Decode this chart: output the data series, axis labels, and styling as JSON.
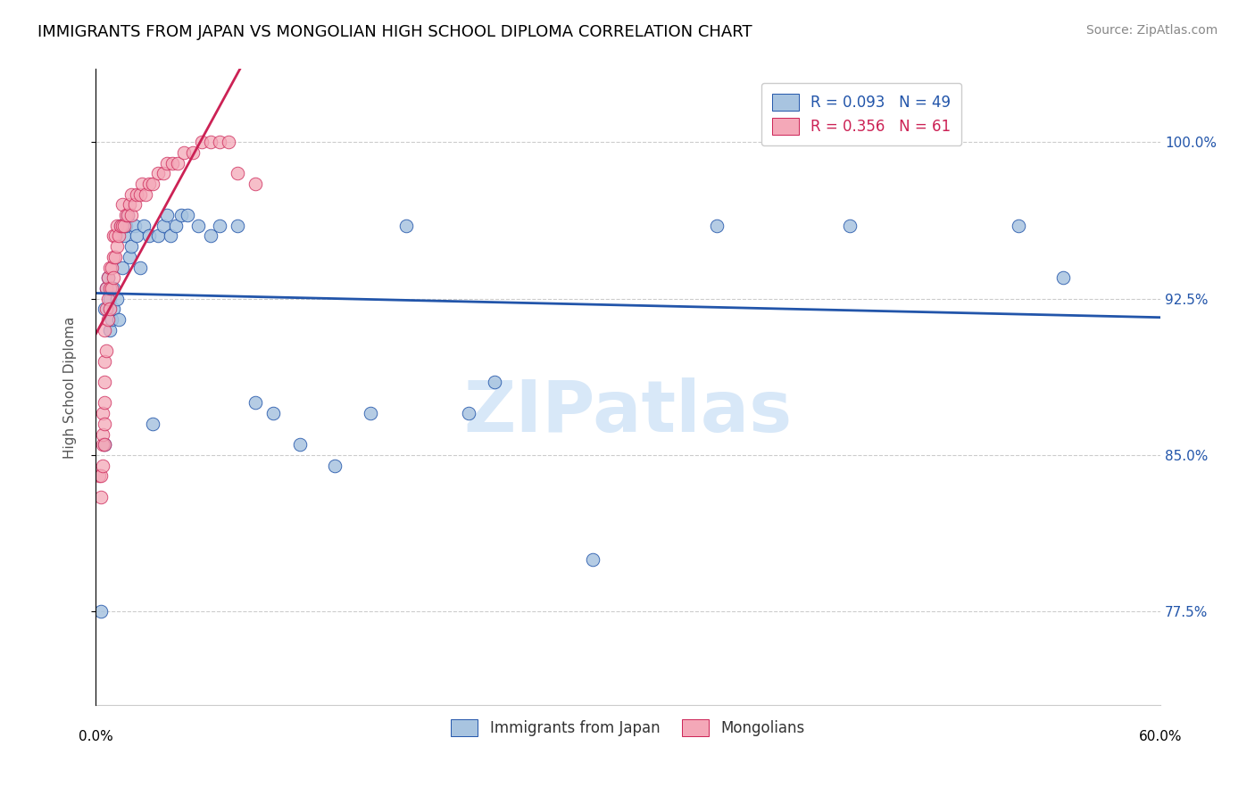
{
  "title": "IMMIGRANTS FROM JAPAN VS MONGOLIAN HIGH SCHOOL DIPLOMA CORRELATION CHART",
  "source": "Source: ZipAtlas.com",
  "ylabel": "High School Diploma",
  "ytick_labels": [
    "100.0%",
    "92.5%",
    "85.0%",
    "77.5%"
  ],
  "ytick_values": [
    1.0,
    0.925,
    0.85,
    0.775
  ],
  "xlim": [
    0.0,
    0.6
  ],
  "ylim": [
    0.73,
    1.035
  ],
  "legend_blue_r": "0.093",
  "legend_blue_n": "49",
  "legend_pink_r": "0.356",
  "legend_pink_n": "61",
  "blue_color": "#A8C4E0",
  "pink_color": "#F4A8B8",
  "trendline_blue_color": "#2255AA",
  "trendline_pink_color": "#CC2255",
  "watermark_text": "ZIPatlas",
  "watermark_color": "#D8E8F8",
  "blue_scatter_x": [
    0.003,
    0.005,
    0.005,
    0.006,
    0.007,
    0.008,
    0.008,
    0.009,
    0.01,
    0.01,
    0.012,
    0.013,
    0.014,
    0.015,
    0.016,
    0.017,
    0.018,
    0.019,
    0.02,
    0.022,
    0.023,
    0.025,
    0.027,
    0.03,
    0.032,
    0.035,
    0.038,
    0.04,
    0.042,
    0.045,
    0.048,
    0.052,
    0.058,
    0.065,
    0.07,
    0.08,
    0.09,
    0.1,
    0.115,
    0.135,
    0.155,
    0.175,
    0.21,
    0.225,
    0.28,
    0.35,
    0.425,
    0.52,
    0.545
  ],
  "blue_scatter_y": [
    0.775,
    0.855,
    0.92,
    0.93,
    0.935,
    0.91,
    0.925,
    0.915,
    0.92,
    0.93,
    0.925,
    0.915,
    0.96,
    0.94,
    0.955,
    0.96,
    0.965,
    0.945,
    0.95,
    0.96,
    0.955,
    0.94,
    0.96,
    0.955,
    0.865,
    0.955,
    0.96,
    0.965,
    0.955,
    0.96,
    0.965,
    0.965,
    0.96,
    0.955,
    0.96,
    0.96,
    0.875,
    0.87,
    0.855,
    0.845,
    0.87,
    0.96,
    0.87,
    0.885,
    0.8,
    0.96,
    0.96,
    0.96,
    0.935
  ],
  "pink_scatter_x": [
    0.002,
    0.003,
    0.003,
    0.004,
    0.004,
    0.004,
    0.004,
    0.005,
    0.005,
    0.005,
    0.005,
    0.005,
    0.005,
    0.006,
    0.006,
    0.006,
    0.007,
    0.007,
    0.007,
    0.008,
    0.008,
    0.008,
    0.009,
    0.009,
    0.01,
    0.01,
    0.01,
    0.011,
    0.011,
    0.012,
    0.012,
    0.013,
    0.014,
    0.015,
    0.015,
    0.016,
    0.017,
    0.018,
    0.019,
    0.02,
    0.02,
    0.022,
    0.023,
    0.025,
    0.026,
    0.028,
    0.03,
    0.032,
    0.035,
    0.038,
    0.04,
    0.043,
    0.046,
    0.05,
    0.055,
    0.06,
    0.065,
    0.07,
    0.075,
    0.08,
    0.09
  ],
  "pink_scatter_y": [
    0.84,
    0.84,
    0.83,
    0.845,
    0.855,
    0.86,
    0.87,
    0.855,
    0.865,
    0.875,
    0.885,
    0.895,
    0.91,
    0.9,
    0.92,
    0.93,
    0.915,
    0.925,
    0.935,
    0.92,
    0.93,
    0.94,
    0.93,
    0.94,
    0.935,
    0.945,
    0.955,
    0.945,
    0.955,
    0.95,
    0.96,
    0.955,
    0.96,
    0.96,
    0.97,
    0.96,
    0.965,
    0.965,
    0.97,
    0.965,
    0.975,
    0.97,
    0.975,
    0.975,
    0.98,
    0.975,
    0.98,
    0.98,
    0.985,
    0.985,
    0.99,
    0.99,
    0.99,
    0.995,
    0.995,
    1.0,
    1.0,
    1.0,
    1.0,
    0.985,
    0.98
  ],
  "title_fontsize": 13,
  "axis_label_fontsize": 11,
  "tick_fontsize": 11,
  "legend_fontsize": 12,
  "source_fontsize": 10,
  "bottom_legend_labels": [
    "Immigrants from Japan",
    "Mongolians"
  ]
}
